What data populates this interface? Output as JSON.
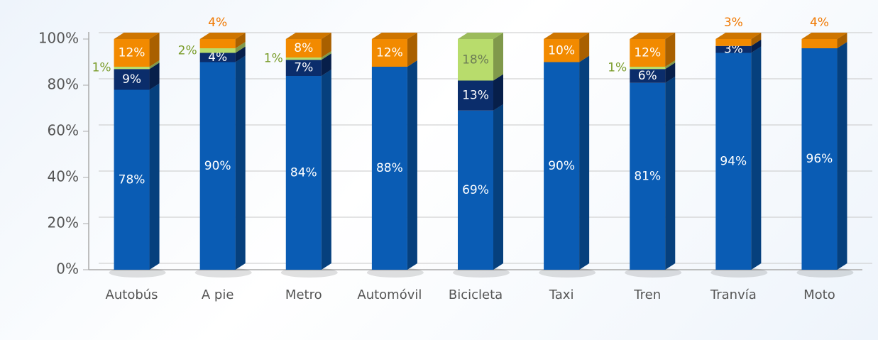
{
  "chart_data": {
    "type": "bar",
    "stacked": true,
    "categories": [
      "Autobús",
      "A pie",
      "Metro",
      "Automóvil",
      "Bicicleta",
      "Taxi",
      "Tren",
      "Tranvía",
      "Moto"
    ],
    "series": [
      {
        "color": "#0a5cb4",
        "values": [
          78,
          90,
          84,
          88,
          69,
          90,
          81,
          94,
          96
        ],
        "value_labels": [
          "78%",
          "90%",
          "84%",
          "88%",
          "69%",
          "90%",
          "81%",
          "94%",
          "96%"
        ]
      },
      {
        "color": "#0b2d6b",
        "values": [
          9,
          4,
          7,
          null,
          13,
          null,
          6,
          3,
          null
        ],
        "value_labels": [
          "9%",
          "4%",
          "7%",
          null,
          "13%",
          null,
          "6%",
          "3%",
          null
        ]
      },
      {
        "color": "#b8dc6c",
        "values": [
          1,
          2,
          1,
          null,
          18,
          null,
          1,
          null,
          null
        ],
        "value_labels": [
          "1%",
          "2%",
          "1%",
          null,
          "18%",
          null,
          "1%",
          null,
          null
        ]
      },
      {
        "color": "#f28a00",
        "values": [
          12,
          4,
          8,
          12,
          null,
          10,
          12,
          3,
          4
        ],
        "value_labels": [
          "12%",
          "4%",
          "8%",
          "12%",
          null,
          "10%",
          "12%",
          "3%",
          "4%"
        ]
      }
    ],
    "ylim": [
      0,
      100
    ],
    "yticks": [
      {
        "value": 0,
        "label": "0%"
      },
      {
        "value": 20,
        "label": "20%"
      },
      {
        "value": 40,
        "label": "40%"
      },
      {
        "value": 60,
        "label": "60%"
      },
      {
        "value": 80,
        "label": "80%"
      },
      {
        "value": 100,
        "label": "100%"
      }
    ],
    "grid": true
  }
}
